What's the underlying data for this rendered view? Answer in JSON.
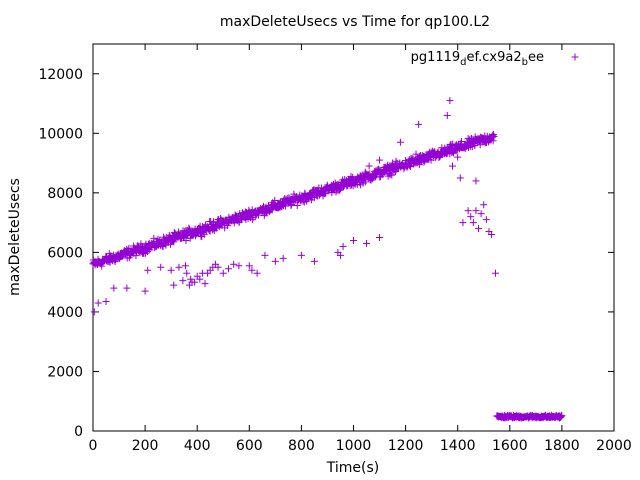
{
  "chart_data": {
    "type": "scatter",
    "title": "maxDeleteUsecs vs Time for qp100.L2",
    "xlabel": "Time(s)",
    "ylabel": "maxDeleteUsecs",
    "xlim": [
      0,
      2000
    ],
    "ylim": [
      0,
      13000
    ],
    "xticks": [
      "0",
      "200",
      "400",
      "600",
      "800",
      "1000",
      "1200",
      "1400",
      "1600",
      "1800",
      "2000"
    ],
    "yticks": [
      "0",
      "2000",
      "4000",
      "6000",
      "8000",
      "10000",
      "12000"
    ],
    "grid": false,
    "legend_position": "top-right",
    "marker": "plus",
    "color": "#9400d3",
    "series": [
      {
        "name": "pg1119_def.cx9a2_bee",
        "name_main": "pg1119",
        "name_sub1": "d",
        "name_mid": "ef.cx9a2",
        "name_sub2": "b",
        "name_end": "ee",
        "trend_segments": [
          {
            "x_start": 0,
            "x_end": 1540,
            "y_start": 5600,
            "y_end": 9900,
            "spread": 450
          }
        ],
        "tail_cluster": {
          "x_start": 1550,
          "x_end": 1800,
          "y_center": 480,
          "spread": 120
        },
        "points": [
          [
            5,
            4000
          ],
          [
            20,
            4300
          ],
          [
            50,
            4350
          ],
          [
            80,
            4800
          ],
          [
            130,
            4800
          ],
          [
            200,
            4700
          ],
          [
            210,
            5400
          ],
          [
            260,
            5500
          ],
          [
            300,
            5400
          ],
          [
            310,
            4900
          ],
          [
            330,
            5500
          ],
          [
            345,
            5050
          ],
          [
            355,
            5550
          ],
          [
            360,
            5300
          ],
          [
            370,
            4900
          ],
          [
            375,
            5100
          ],
          [
            380,
            5000
          ],
          [
            390,
            5000
          ],
          [
            400,
            5200
          ],
          [
            410,
            5100
          ],
          [
            420,
            5300
          ],
          [
            430,
            4950
          ],
          [
            440,
            5300
          ],
          [
            450,
            5400
          ],
          [
            460,
            5500
          ],
          [
            470,
            5600
          ],
          [
            480,
            5500
          ],
          [
            500,
            5300
          ],
          [
            520,
            5450
          ],
          [
            540,
            5600
          ],
          [
            560,
            5550
          ],
          [
            600,
            5550
          ],
          [
            610,
            5400
          ],
          [
            630,
            5300
          ],
          [
            660,
            5900
          ],
          [
            700,
            5700
          ],
          [
            730,
            5800
          ],
          [
            800,
            5900
          ],
          [
            850,
            5700
          ],
          [
            940,
            6000
          ],
          [
            950,
            5900
          ],
          [
            960,
            6200
          ],
          [
            1000,
            6400
          ],
          [
            1050,
            6300
          ],
          [
            1100,
            6500
          ],
          [
            1420,
            7000
          ],
          [
            1440,
            7400
          ],
          [
            1450,
            7200
          ],
          [
            1460,
            7000
          ],
          [
            1470,
            7400
          ],
          [
            1480,
            6800
          ],
          [
            1490,
            7300
          ],
          [
            1500,
            7600
          ],
          [
            1510,
            7100
          ],
          [
            1520,
            6700
          ],
          [
            1530,
            6600
          ],
          [
            1545,
            5300
          ],
          [
            1400,
            9200
          ],
          [
            1410,
            8500
          ],
          [
            1470,
            8400
          ],
          [
            1380,
            8900
          ],
          [
            1360,
            10600
          ],
          [
            1370,
            11100
          ],
          [
            1250,
            10300
          ],
          [
            1240,
            9300
          ],
          [
            1180,
            9700
          ],
          [
            1100,
            9100
          ],
          [
            1150,
            9000
          ],
          [
            1060,
            8900
          ]
        ]
      }
    ]
  }
}
